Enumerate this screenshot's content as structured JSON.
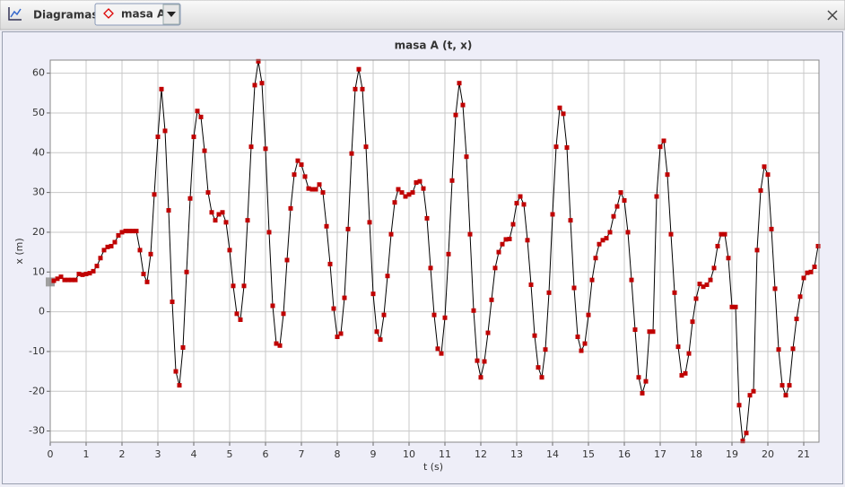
{
  "toolbar": {
    "label": "Diagramas",
    "selected": "masa A"
  },
  "chart_data": {
    "type": "line",
    "title": "masa A (t, x)",
    "x_label": "t (s)",
    "y_label": "x (m)",
    "line_color": "#000000",
    "marker_color": "#c00000",
    "grid": true,
    "xlim": [
      0,
      21.425
    ],
    "ylim": [
      -32.8,
      63.3
    ],
    "xticks": [
      0,
      1,
      2,
      3,
      4,
      5,
      6,
      7,
      8,
      9,
      10,
      11,
      12,
      13,
      14,
      15,
      16,
      17,
      18,
      19,
      20,
      21
    ],
    "yticks": [
      -30,
      -20,
      -10,
      0,
      10,
      20,
      30,
      40,
      50,
      60
    ],
    "x": [
      0,
      0.1,
      0.2,
      0.3,
      0.4,
      0.5,
      0.6,
      0.7,
      0.8,
      0.9,
      1,
      1.1,
      1.2,
      1.3,
      1.4,
      1.5,
      1.6,
      1.7,
      1.8,
      1.9,
      2,
      2.1,
      2.2,
      2.3,
      2.4,
      2.5,
      2.6,
      2.7,
      2.8,
      2.9,
      3,
      3.1,
      3.2,
      3.3,
      3.4,
      3.5,
      3.6,
      3.7,
      3.8,
      3.9,
      4,
      4.1,
      4.2,
      4.3,
      4.4,
      4.5,
      4.6,
      4.7,
      4.8,
      4.9,
      5,
      5.1,
      5.2,
      5.3,
      5.4,
      5.5,
      5.6,
      5.7,
      5.8,
      5.9,
      6,
      6.1,
      6.2,
      6.3,
      6.4,
      6.5,
      6.6,
      6.7,
      6.8,
      6.9,
      7,
      7.1,
      7.2,
      7.3,
      7.4,
      7.5,
      7.6,
      7.7,
      7.8,
      7.9,
      8,
      8.1,
      8.2,
      8.3,
      8.4,
      8.5,
      8.6,
      8.7,
      8.8,
      8.9,
      9,
      9.1,
      9.2,
      9.3,
      9.4,
      9.5,
      9.6,
      9.7,
      9.8,
      9.9,
      10,
      10.1,
      10.2,
      10.3,
      10.4,
      10.5,
      10.6,
      10.7,
      10.8,
      10.9,
      11,
      11.1,
      11.2,
      11.3,
      11.4,
      11.5,
      11.6,
      11.7,
      11.8,
      11.9,
      12,
      12.1,
      12.2,
      12.3,
      12.4,
      12.5,
      12.6,
      12.7,
      12.8,
      12.9,
      13,
      13.1,
      13.2,
      13.3,
      13.4,
      13.5,
      13.6,
      13.7,
      13.8,
      13.9,
      14,
      14.1,
      14.2,
      14.3,
      14.4,
      14.5,
      14.6,
      14.7,
      14.8,
      14.9,
      15,
      15.1,
      15.2,
      15.3,
      15.4,
      15.5,
      15.6,
      15.7,
      15.8,
      15.9,
      16,
      16.1,
      16.2,
      16.3,
      16.4,
      16.5,
      16.6,
      16.7,
      16.8,
      16.9,
      17,
      17.1,
      17.2,
      17.3,
      17.4,
      17.5,
      17.6,
      17.7,
      17.8,
      17.9,
      18,
      18.1,
      18.2,
      18.3,
      18.4,
      18.5,
      18.6,
      18.7,
      18.8,
      18.9,
      19,
      19.1,
      19.2,
      19.3,
      19.4,
      19.5,
      19.6,
      19.7,
      19.8,
      19.9,
      20,
      20.1,
      20.2,
      20.3,
      20.4,
      20.5,
      20.6,
      20.7,
      20.8,
      20.9,
      21,
      21.1,
      21.2,
      21.3,
      21.4
    ],
    "values": [
      7.5,
      7.8,
      8.3,
      8.8,
      8,
      8,
      8,
      8,
      9.5,
      9.3,
      9.5,
      9.7,
      10.2,
      11.5,
      13.5,
      15.5,
      16.3,
      16.5,
      17.5,
      19.2,
      20,
      20.3,
      20.3,
      20.3,
      20.3,
      15.5,
      9.5,
      7.5,
      14.5,
      29.5,
      44,
      56,
      45.5,
      25.5,
      2.5,
      -15,
      -18.5,
      -9,
      10,
      28.5,
      44,
      50.5,
      49,
      40.5,
      30,
      25,
      23,
      24.5,
      25,
      22.5,
      15.5,
      6.5,
      -0.5,
      -2,
      6.5,
      23,
      41.5,
      57,
      63,
      57.5,
      41,
      20,
      1.5,
      -8,
      -8.5,
      -0.5,
      13,
      26,
      34.5,
      38,
      37,
      34,
      31,
      30.8,
      30.8,
      32,
      30,
      21.5,
      12,
      0.8,
      -6.3,
      -5.5,
      3.5,
      20.8,
      39.8,
      56,
      61,
      56,
      41.5,
      22.5,
      4.5,
      -5,
      -7,
      -0.8,
      9,
      19.5,
      27.5,
      30.8,
      30,
      29,
      29.5,
      30,
      32.5,
      32.8,
      31,
      23.5,
      11,
      -0.8,
      -9.3,
      -10.5,
      -1.5,
      14.5,
      33,
      49.5,
      57.5,
      52,
      39,
      19.5,
      0.3,
      -12.3,
      -16.5,
      -12.5,
      -5.3,
      3,
      11,
      15,
      17,
      18.2,
      18.3,
      22,
      27.3,
      29,
      27,
      18,
      6.8,
      -6,
      -14,
      -16.5,
      -9.5,
      4.8,
      24.5,
      41.5,
      51.3,
      49.8,
      41.3,
      23,
      6,
      -6.3,
      -9.8,
      -8,
      -0.8,
      8,
      13.5,
      17,
      18,
      18.5,
      20,
      24,
      26.5,
      30,
      28,
      20,
      8,
      -4.5,
      -16.5,
      -20.5,
      -17.5,
      -5,
      -5,
      29,
      41.5,
      43,
      34.5,
      19.5,
      4.8,
      -8.8,
      -16,
      -15.5,
      -10.5,
      -2.5,
      3.3,
      7,
      6.3,
      6.8,
      8,
      11,
      16.5,
      19.5,
      19.5,
      13.5,
      1.2,
      1.2,
      -23.5,
      -32.5,
      -30.5,
      -21,
      -20,
      15.5,
      30.5,
      36.5,
      34.5,
      20.8,
      5.8,
      -9.5,
      -18.5,
      -21,
      -18.5,
      -9.3,
      -1.8,
      3.8,
      8.5,
      9.8,
      10,
      11.3,
      16.5
    ]
  }
}
